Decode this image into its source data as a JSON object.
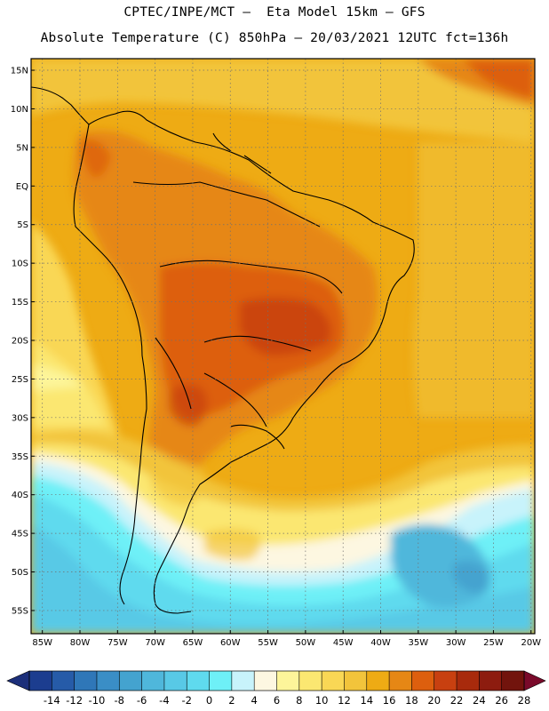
{
  "header": {
    "line1": "CPTEC/INPE/MCT —  Eta Model 15km — GFS",
    "line2": "Absolute Temperature (C) 850hPa — 20/03/2021 12UTC fct=136h"
  },
  "map": {
    "lat_labels": [
      "15N",
      "10N",
      "5N",
      "EQ",
      "5S",
      "10S",
      "15S",
      "20S",
      "25S",
      "30S",
      "35S",
      "40S",
      "45S",
      "50S",
      "55S"
    ],
    "lon_labels": [
      "85W",
      "80W",
      "75W",
      "70W",
      "65W",
      "60W",
      "55W",
      "50W",
      "45W",
      "40W",
      "35W",
      "30W",
      "25W",
      "20W"
    ],
    "lat_range": [
      -58,
      16.5
    ],
    "lon_range": [
      -86.5,
      -19.5
    ]
  },
  "colorbar": {
    "labels": [
      "-14",
      "-12",
      "-10",
      "-8",
      "-6",
      "-4",
      "-2",
      "0",
      "2",
      "4",
      "6",
      "8",
      "10",
      "12",
      "14",
      "16",
      "18",
      "20",
      "22",
      "24",
      "26",
      "28"
    ],
    "colors": [
      "#1c3d8f",
      "#265ba8",
      "#2f77b8",
      "#3a8ec6",
      "#44a3cf",
      "#4fb7db",
      "#58c9e6",
      "#5fdaee",
      "#6ef0f7",
      "#c8f3fb",
      "#fdf7e1",
      "#fdf59a",
      "#fbe771",
      "#f9d755",
      "#f2c43b",
      "#eeab14",
      "#e68715",
      "#dd5f0e",
      "#c84010",
      "#a82a0c",
      "#8d1c0f",
      "#72140d"
    ],
    "low_arrow_color": "#1c2f7a",
    "high_arrow_color": "#7a0a2a"
  }
}
